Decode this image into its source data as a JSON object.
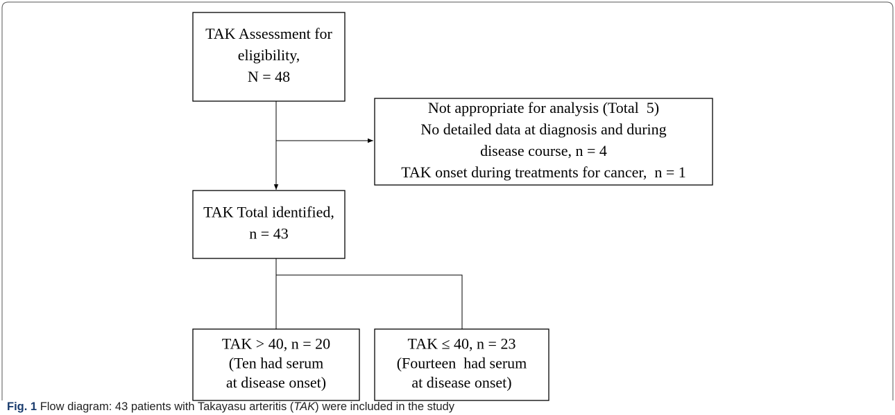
{
  "nodes": [
    {
      "lines": [
        "TAK Assessment for",
        "eligibility,",
        "N = 48"
      ]
    },
    {
      "lines": [
        "Not appropriate for analysis (Total  5)",
        "No detailed data at diagnosis and during",
        "disease course, n = 4",
        "TAK onset during treatments for cancer,  n = 1"
      ]
    },
    {
      "lines": [
        "TAK Total identified,",
        "n = 43"
      ]
    },
    {
      "lines": [
        "TAK > 40, n = 20",
        "(Ten had serum",
        "at disease onset)"
      ]
    },
    {
      "lines": [
        "TAK ≤ 40, n = 23",
        "(Fourteen  had serum",
        "at disease onset)"
      ]
    }
  ],
  "caption": {
    "label": "Fig. 1",
    "text_before": "Flow diagram: 43 patients with Takayasu arteritis (",
    "emphasis": "TAK",
    "text_after": ") were included in the study"
  }
}
